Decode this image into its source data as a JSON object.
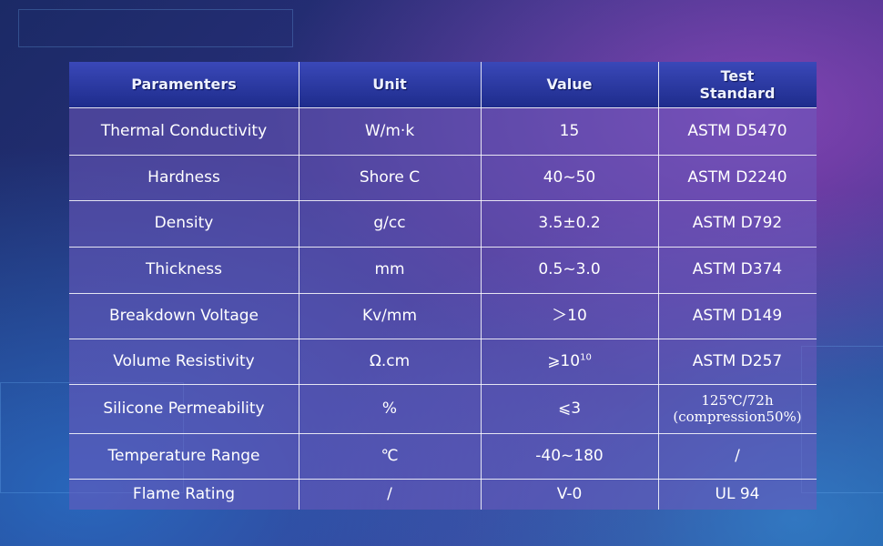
{
  "table": {
    "header": [
      "Paramenters",
      "Unit",
      "Value",
      "Test Standard"
    ],
    "rows": [
      [
        "Thermal Conductivity",
        "W/m·k",
        "15",
        "ASTM D5470"
      ],
      [
        "Hardness",
        "Shore C",
        "40~50",
        "ASTM D2240"
      ],
      [
        "Density",
        "g/cc",
        "3.5±0.2",
        "ASTM D792"
      ],
      [
        "Thickness",
        "mm",
        "0.5~3.0",
        "ASTM D374"
      ],
      [
        "Breakdown Voltage",
        "Kv/mm",
        "＞10",
        "ASTM D149"
      ],
      [
        "Volume Resistivity",
        "Ω.cm",
        {
          "text": "⩾10",
          "superscript": "10"
        },
        "ASTM D257"
      ],
      [
        "Silicone Permeability",
        "%",
        "⩽3",
        [
          "125℃/72h",
          "(compression50%)"
        ]
      ],
      [
        "Temperature Range",
        "℃",
        "-40~180",
        "/"
      ],
      [
        "Flame Rating",
        "/",
        "V-0",
        "UL 94"
      ]
    ]
  }
}
